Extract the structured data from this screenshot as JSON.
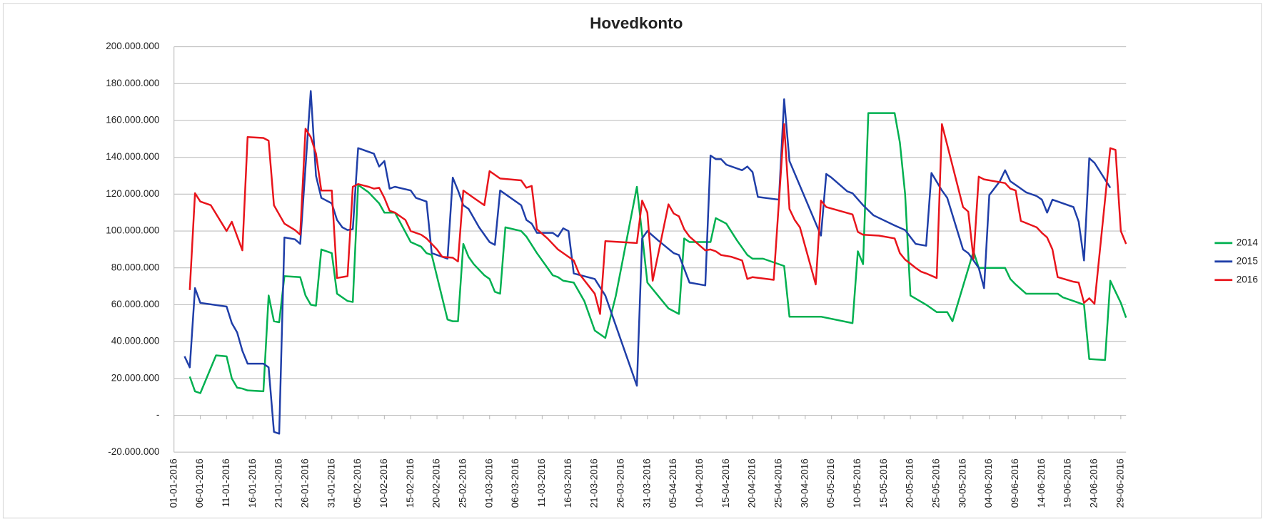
{
  "chart_data": {
    "type": "line",
    "title": "Hovedkonto",
    "xlim": [
      "01-01-2016",
      "30-06-2016"
    ],
    "xticks": [
      "01-01-2016",
      "06-01-2016",
      "11-01-2016",
      "16-01-2016",
      "21-01-2016",
      "26-01-2016",
      "31-01-2016",
      "05-02-2016",
      "10-02-2016",
      "15-02-2016",
      "20-02-2016",
      "25-02-2016",
      "01-03-2016",
      "06-03-2016",
      "11-03-2016",
      "16-03-2016",
      "21-03-2016",
      "26-03-2016",
      "31-03-2016",
      "05-04-2016",
      "10-04-2016",
      "15-04-2016",
      "20-04-2016",
      "25-04-2016",
      "30-04-2016",
      "05-05-2016",
      "10-05-2016",
      "15-05-2016",
      "20-05-2016",
      "25-05-2016",
      "30-05-2016",
      "04-06-2016",
      "09-06-2016",
      "14-06-2016",
      "19-06-2016",
      "24-06-2016",
      "29-06-2016"
    ],
    "ylim": [
      -20000000,
      200000000
    ],
    "yticks": [
      {
        "value": -20000000,
        "label": "-20.000.000"
      },
      {
        "value": 0,
        "label": "-"
      },
      {
        "value": 20000000,
        "label": "20.000.000"
      },
      {
        "value": 40000000,
        "label": "40.000.000"
      },
      {
        "value": 60000000,
        "label": "60.000.000"
      },
      {
        "value": 80000000,
        "label": "80.000.000"
      },
      {
        "value": 100000000,
        "label": "100.000.000"
      },
      {
        "value": 120000000,
        "label": "120.000.000"
      },
      {
        "value": 140000000,
        "label": "140.000.000"
      },
      {
        "value": 160000000,
        "label": "160.000.000"
      },
      {
        "value": 180000000,
        "label": "180.000.000"
      },
      {
        "value": 200000000,
        "label": "200.000.000"
      }
    ],
    "grid": true,
    "legend": "right",
    "series": [
      {
        "name": "2014",
        "color": "#00b050",
        "x": [
          "04-01-2016",
          "05-01-2016",
          "06-01-2016",
          "09-01-2016",
          "11-01-2016",
          "12-01-2016",
          "13-01-2016",
          "14-01-2016",
          "15-01-2016",
          "18-01-2016",
          "19-01-2016",
          "20-01-2016",
          "21-01-2016",
          "22-01-2016",
          "25-01-2016",
          "26-01-2016",
          "27-01-2016",
          "28-01-2016",
          "29-01-2016",
          "31-01-2016",
          "01-02-2016",
          "03-02-2016",
          "04-02-2016",
          "05-02-2016",
          "07-02-2016",
          "09-02-2016",
          "10-02-2016",
          "12-02-2016",
          "15-02-2016",
          "17-02-2016",
          "18-02-2016",
          "19-02-2016",
          "22-02-2016",
          "23-02-2016",
          "24-02-2016",
          "25-02-2016",
          "26-02-2016",
          "27-02-2016",
          "29-02-2016",
          "01-03-2016",
          "02-03-2016",
          "03-03-2016",
          "04-03-2016",
          "07-03-2016",
          "08-03-2016",
          "10-03-2016",
          "12-03-2016",
          "13-03-2016",
          "14-03-2016",
          "15-03-2016",
          "17-03-2016",
          "19-03-2016",
          "21-03-2016",
          "23-03-2016",
          "25-03-2016",
          "29-03-2016",
          "31-03-2016",
          "02-04-2016",
          "04-04-2016",
          "06-04-2016",
          "07-04-2016",
          "08-04-2016",
          "12-04-2016",
          "13-04-2016",
          "15-04-2016",
          "17-04-2016",
          "19-04-2016",
          "20-04-2016",
          "22-04-2016",
          "26-04-2016",
          "27-04-2016",
          "03-05-2016",
          "09-05-2016",
          "10-05-2016",
          "11-05-2016",
          "12-05-2016",
          "17-05-2016",
          "18-05-2016",
          "19-05-2016",
          "20-05-2016",
          "23-05-2016",
          "25-05-2016",
          "27-05-2016",
          "28-05-2016",
          "01-06-2016",
          "02-06-2016",
          "07-06-2016",
          "08-06-2016",
          "09-06-2016",
          "11-06-2016",
          "17-06-2016",
          "18-06-2016",
          "20-06-2016",
          "22-06-2016",
          "23-06-2016",
          "26-06-2016",
          "27-06-2016",
          "29-06-2016",
          "30-06-2016"
        ],
        "values": [
          21000000,
          13000000,
          12000000,
          32500000,
          32000000,
          20000000,
          15000000,
          14500000,
          13500000,
          13000000,
          65000000,
          51000000,
          50500000,
          75500000,
          75000000,
          65000000,
          60000000,
          59500000,
          90000000,
          88000000,
          66000000,
          62000000,
          61500000,
          125000000,
          121000000,
          115000000,
          110000000,
          110000000,
          94000000,
          91500000,
          88000000,
          87000000,
          52000000,
          51000000,
          51000000,
          93000000,
          86000000,
          82000000,
          76000000,
          74000000,
          67000000,
          66000000,
          102000000,
          100000000,
          97000000,
          88000000,
          80000000,
          76000000,
          75000000,
          73000000,
          72000000,
          62000000,
          46000000,
          42000000,
          65000000,
          124000000,
          72000000,
          65000000,
          58000000,
          55000000,
          96000000,
          94000000,
          94000000,
          107000000,
          104000000,
          95000000,
          87000000,
          85000000,
          85000000,
          81000000,
          53500000,
          53500000,
          50000000,
          89000000,
          82000000,
          164000000,
          164000000,
          148000000,
          120000000,
          65000000,
          60000000,
          56000000,
          56000000,
          51000000,
          89000000,
          80000000,
          80000000,
          74000000,
          71000000,
          66000000,
          66000000,
          64000000,
          62000000,
          60000000,
          30500000,
          30000000,
          73000000,
          61000000,
          53000000
        ]
      },
      {
        "name": "2015",
        "color": "#1f3ea8",
        "x": [
          "03-01-2016",
          "04-01-2016",
          "05-01-2016",
          "06-01-2016",
          "11-01-2016",
          "12-01-2016",
          "13-01-2016",
          "14-01-2016",
          "15-01-2016",
          "18-01-2016",
          "19-01-2016",
          "20-01-2016",
          "21-01-2016",
          "22-01-2016",
          "24-01-2016",
          "25-01-2016",
          "27-01-2016",
          "28-01-2016",
          "29-01-2016",
          "31-01-2016",
          "01-02-2016",
          "02-02-2016",
          "03-02-2016",
          "04-02-2016",
          "05-02-2016",
          "08-02-2016",
          "09-02-2016",
          "10-02-2016",
          "11-02-2016",
          "12-02-2016",
          "15-02-2016",
          "16-02-2016",
          "18-02-2016",
          "19-02-2016",
          "22-02-2016",
          "23-02-2016",
          "24-02-2016",
          "25-02-2016",
          "26-02-2016",
          "28-02-2016",
          "01-03-2016",
          "02-03-2016",
          "03-03-2016",
          "07-03-2016",
          "08-03-2016",
          "09-03-2016",
          "10-03-2016",
          "13-03-2016",
          "14-03-2016",
          "15-03-2016",
          "16-03-2016",
          "17-03-2016",
          "21-03-2016",
          "23-03-2016",
          "29-03-2016",
          "30-03-2016",
          "31-03-2016",
          "02-04-2016",
          "05-04-2016",
          "06-04-2016",
          "08-04-2016",
          "11-04-2016",
          "12-04-2016",
          "13-04-2016",
          "14-04-2016",
          "15-04-2016",
          "18-04-2016",
          "19-04-2016",
          "20-04-2016",
          "21-04-2016",
          "25-04-2016",
          "26-04-2016",
          "27-04-2016",
          "03-05-2016",
          "04-05-2016",
          "05-05-2016",
          "08-05-2016",
          "09-05-2016",
          "11-05-2016",
          "13-05-2016",
          "17-05-2016",
          "19-05-2016",
          "21-05-2016",
          "23-05-2016",
          "24-05-2016",
          "26-05-2016",
          "27-05-2016",
          "30-05-2016",
          "31-05-2016",
          "02-06-2016",
          "03-06-2016",
          "04-06-2016",
          "06-06-2016",
          "07-06-2016",
          "08-06-2016",
          "09-06-2016",
          "11-06-2016",
          "13-06-2016",
          "14-06-2016",
          "15-06-2016",
          "16-06-2016",
          "20-06-2016",
          "21-06-2016",
          "22-06-2016",
          "23-06-2016",
          "24-06-2016",
          "27-06-2016"
        ],
        "values": [
          32000000,
          26000000,
          69000000,
          61000000,
          59000000,
          50000000,
          45000000,
          35000000,
          28000000,
          28000000,
          26000000,
          -9000000,
          -10000000,
          96500000,
          95500000,
          93000000,
          176000000,
          130000000,
          118000000,
          115000000,
          106000000,
          102000000,
          100500000,
          101000000,
          145000000,
          142000000,
          135000000,
          138000000,
          123000000,
          124000000,
          122000000,
          118000000,
          116000000,
          88000000,
          85000000,
          129000000,
          122000000,
          114000000,
          112000000,
          102000000,
          94000000,
          92500000,
          122000000,
          114000000,
          106000000,
          104000000,
          99000000,
          99000000,
          97000000,
          101500000,
          100000000,
          77000000,
          74000000,
          65000000,
          16000000,
          96000000,
          100000000,
          95000000,
          88000000,
          87000000,
          72000000,
          70500000,
          141000000,
          139000000,
          139000000,
          136000000,
          133000000,
          135000000,
          132000000,
          118500000,
          117000000,
          171500000,
          138000000,
          97500000,
          131000000,
          129000000,
          121500000,
          120500000,
          114000000,
          108500000,
          103000000,
          100500000,
          93000000,
          92000000,
          131500000,
          122000000,
          118000000,
          90000000,
          88000000,
          80000000,
          69000000,
          119500000,
          127000000,
          133000000,
          127000000,
          125000000,
          121000000,
          119000000,
          117000000,
          110000000,
          117000000,
          113000000,
          105000000,
          84000000,
          139500000,
          137000000,
          123500000
        ]
      },
      {
        "name": "2016",
        "color": "#e8141b",
        "x": [
          "04-01-2016",
          "05-01-2016",
          "06-01-2016",
          "08-01-2016",
          "11-01-2016",
          "12-01-2016",
          "14-01-2016",
          "15-01-2016",
          "18-01-2016",
          "19-01-2016",
          "20-01-2016",
          "21-01-2016",
          "22-01-2016",
          "24-01-2016",
          "25-01-2016",
          "26-01-2016",
          "27-01-2016",
          "28-01-2016",
          "29-01-2016",
          "31-01-2016",
          "01-02-2016",
          "03-02-2016",
          "04-02-2016",
          "05-02-2016",
          "07-02-2016",
          "08-02-2016",
          "09-02-2016",
          "10-02-2016",
          "11-02-2016",
          "12-02-2016",
          "14-02-2016",
          "15-02-2016",
          "17-02-2016",
          "18-02-2016",
          "20-02-2016",
          "21-02-2016",
          "23-02-2016",
          "24-02-2016",
          "25-02-2016",
          "27-02-2016",
          "29-02-2016",
          "01-03-2016",
          "03-03-2016",
          "07-03-2016",
          "08-03-2016",
          "09-03-2016",
          "10-03-2016",
          "12-03-2016",
          "14-03-2016",
          "16-03-2016",
          "17-03-2016",
          "18-03-2016",
          "21-03-2016",
          "22-03-2016",
          "23-03-2016",
          "29-03-2016",
          "30-03-2016",
          "31-03-2016",
          "01-04-2016",
          "04-04-2016",
          "05-04-2016",
          "06-04-2016",
          "07-04-2016",
          "08-04-2016",
          "10-04-2016",
          "11-04-2016",
          "12-04-2016",
          "13-04-2016",
          "14-04-2016",
          "16-04-2016",
          "18-04-2016",
          "19-04-2016",
          "20-04-2016",
          "24-04-2016",
          "26-04-2016",
          "27-04-2016",
          "28-04-2016",
          "29-04-2016",
          "02-05-2016",
          "03-05-2016",
          "04-05-2016",
          "09-05-2016",
          "10-05-2016",
          "11-05-2016",
          "14-05-2016",
          "17-05-2016",
          "18-05-2016",
          "19-05-2016",
          "21-05-2016",
          "22-05-2016",
          "23-05-2016",
          "25-05-2016",
          "26-05-2016",
          "30-05-2016",
          "31-05-2016",
          "01-06-2016",
          "02-06-2016",
          "03-06-2016",
          "07-06-2016",
          "08-06-2016",
          "09-06-2016",
          "10-06-2016",
          "13-06-2016",
          "14-06-2016",
          "15-06-2016",
          "16-06-2016",
          "17-06-2016",
          "20-06-2016",
          "21-06-2016",
          "22-06-2016",
          "23-06-2016",
          "24-06-2016",
          "27-06-2016",
          "28-06-2016",
          "29-06-2016",
          "30-06-2016"
        ],
        "values": [
          68000000,
          120500000,
          116000000,
          114000000,
          100000000,
          105000000,
          89500000,
          151000000,
          150500000,
          149000000,
          114000000,
          109000000,
          104000000,
          100500000,
          98000000,
          155500000,
          151000000,
          142000000,
          122000000,
          122000000,
          74500000,
          75500000,
          124000000,
          125500000,
          124000000,
          123000000,
          123500000,
          118000000,
          111000000,
          110000000,
          106000000,
          100000000,
          98000000,
          96000000,
          90000000,
          86000000,
          85500000,
          83500000,
          122000000,
          118000000,
          114000000,
          132500000,
          128500000,
          127500000,
          123500000,
          124500000,
          101000000,
          96000000,
          90000000,
          86000000,
          84000000,
          77000000,
          66000000,
          55000000,
          94500000,
          93500000,
          116500000,
          110000000,
          73000000,
          114500000,
          109500000,
          108000000,
          101000000,
          97000000,
          92000000,
          89500000,
          90000000,
          89000000,
          87000000,
          86000000,
          84000000,
          74000000,
          75000000,
          73500000,
          158000000,
          112000000,
          106000000,
          102000000,
          71000000,
          116500000,
          113000000,
          109000000,
          99500000,
          98000000,
          97500000,
          96000000,
          88000000,
          84500000,
          80000000,
          78000000,
          77000000,
          74500000,
          158000000,
          113000000,
          110500000,
          85000000,
          129500000,
          128000000,
          126000000,
          123000000,
          122000000,
          105500000,
          102000000,
          99000000,
          96500000,
          90000000,
          75000000,
          72500000,
          72000000,
          61000000,
          63500000,
          60500000,
          145000000,
          144000000,
          100000000,
          93000000
        ]
      }
    ]
  }
}
